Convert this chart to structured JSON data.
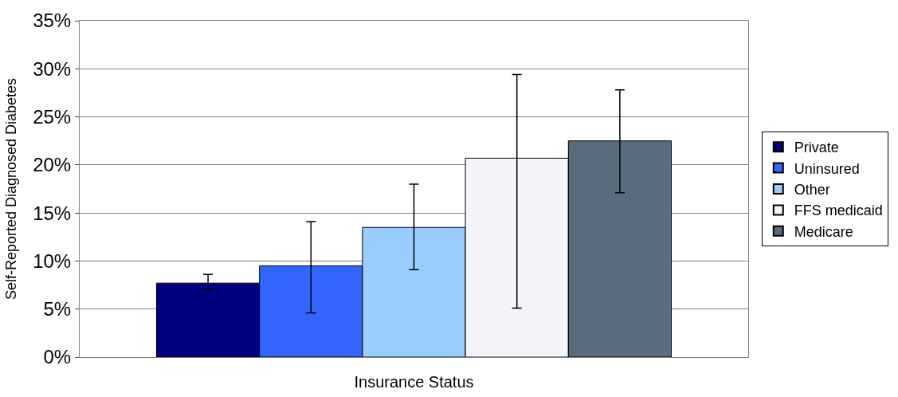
{
  "chart_data": {
    "type": "bar",
    "xlabel": "Insurance Status",
    "ylabel": "Self-Reported Diagnosed Diabetes",
    "categories": [
      null
    ],
    "series": [
      {
        "name": "Private",
        "color": "#000080",
        "values": [
          7.7
        ],
        "errors": [
          [
            7.1,
            8.6
          ]
        ]
      },
      {
        "name": "Uninsured",
        "color": "#3366ff",
        "values": [
          9.5
        ],
        "errors": [
          [
            4.6,
            14.1
          ]
        ]
      },
      {
        "name": "Other",
        "color": "#99ccff",
        "values": [
          13.5
        ],
        "errors": [
          [
            9.1,
            18.0
          ]
        ]
      },
      {
        "name": "FFS medicaid",
        "color": "#f4f4fb",
        "values": [
          20.7
        ],
        "errors": [
          [
            5.1,
            29.4
          ]
        ]
      },
      {
        "name": "Medicare",
        "color": "#5a6b7e",
        "values": [
          22.5
        ],
        "errors": [
          [
            17.1,
            27.8
          ]
        ]
      }
    ],
    "ylim": [
      0,
      35
    ],
    "yticks": [
      {
        "value": 0,
        "label": "0%"
      },
      {
        "value": 5,
        "label": "5%"
      },
      {
        "value": 10,
        "label": "10%"
      },
      {
        "value": 15,
        "label": "15%"
      },
      {
        "value": 20,
        "label": "20%"
      },
      {
        "value": 25,
        "label": "25%"
      },
      {
        "value": 30,
        "label": "30%"
      },
      {
        "value": 35,
        "label": "35%"
      }
    ],
    "grid": "y",
    "legend": "right"
  }
}
